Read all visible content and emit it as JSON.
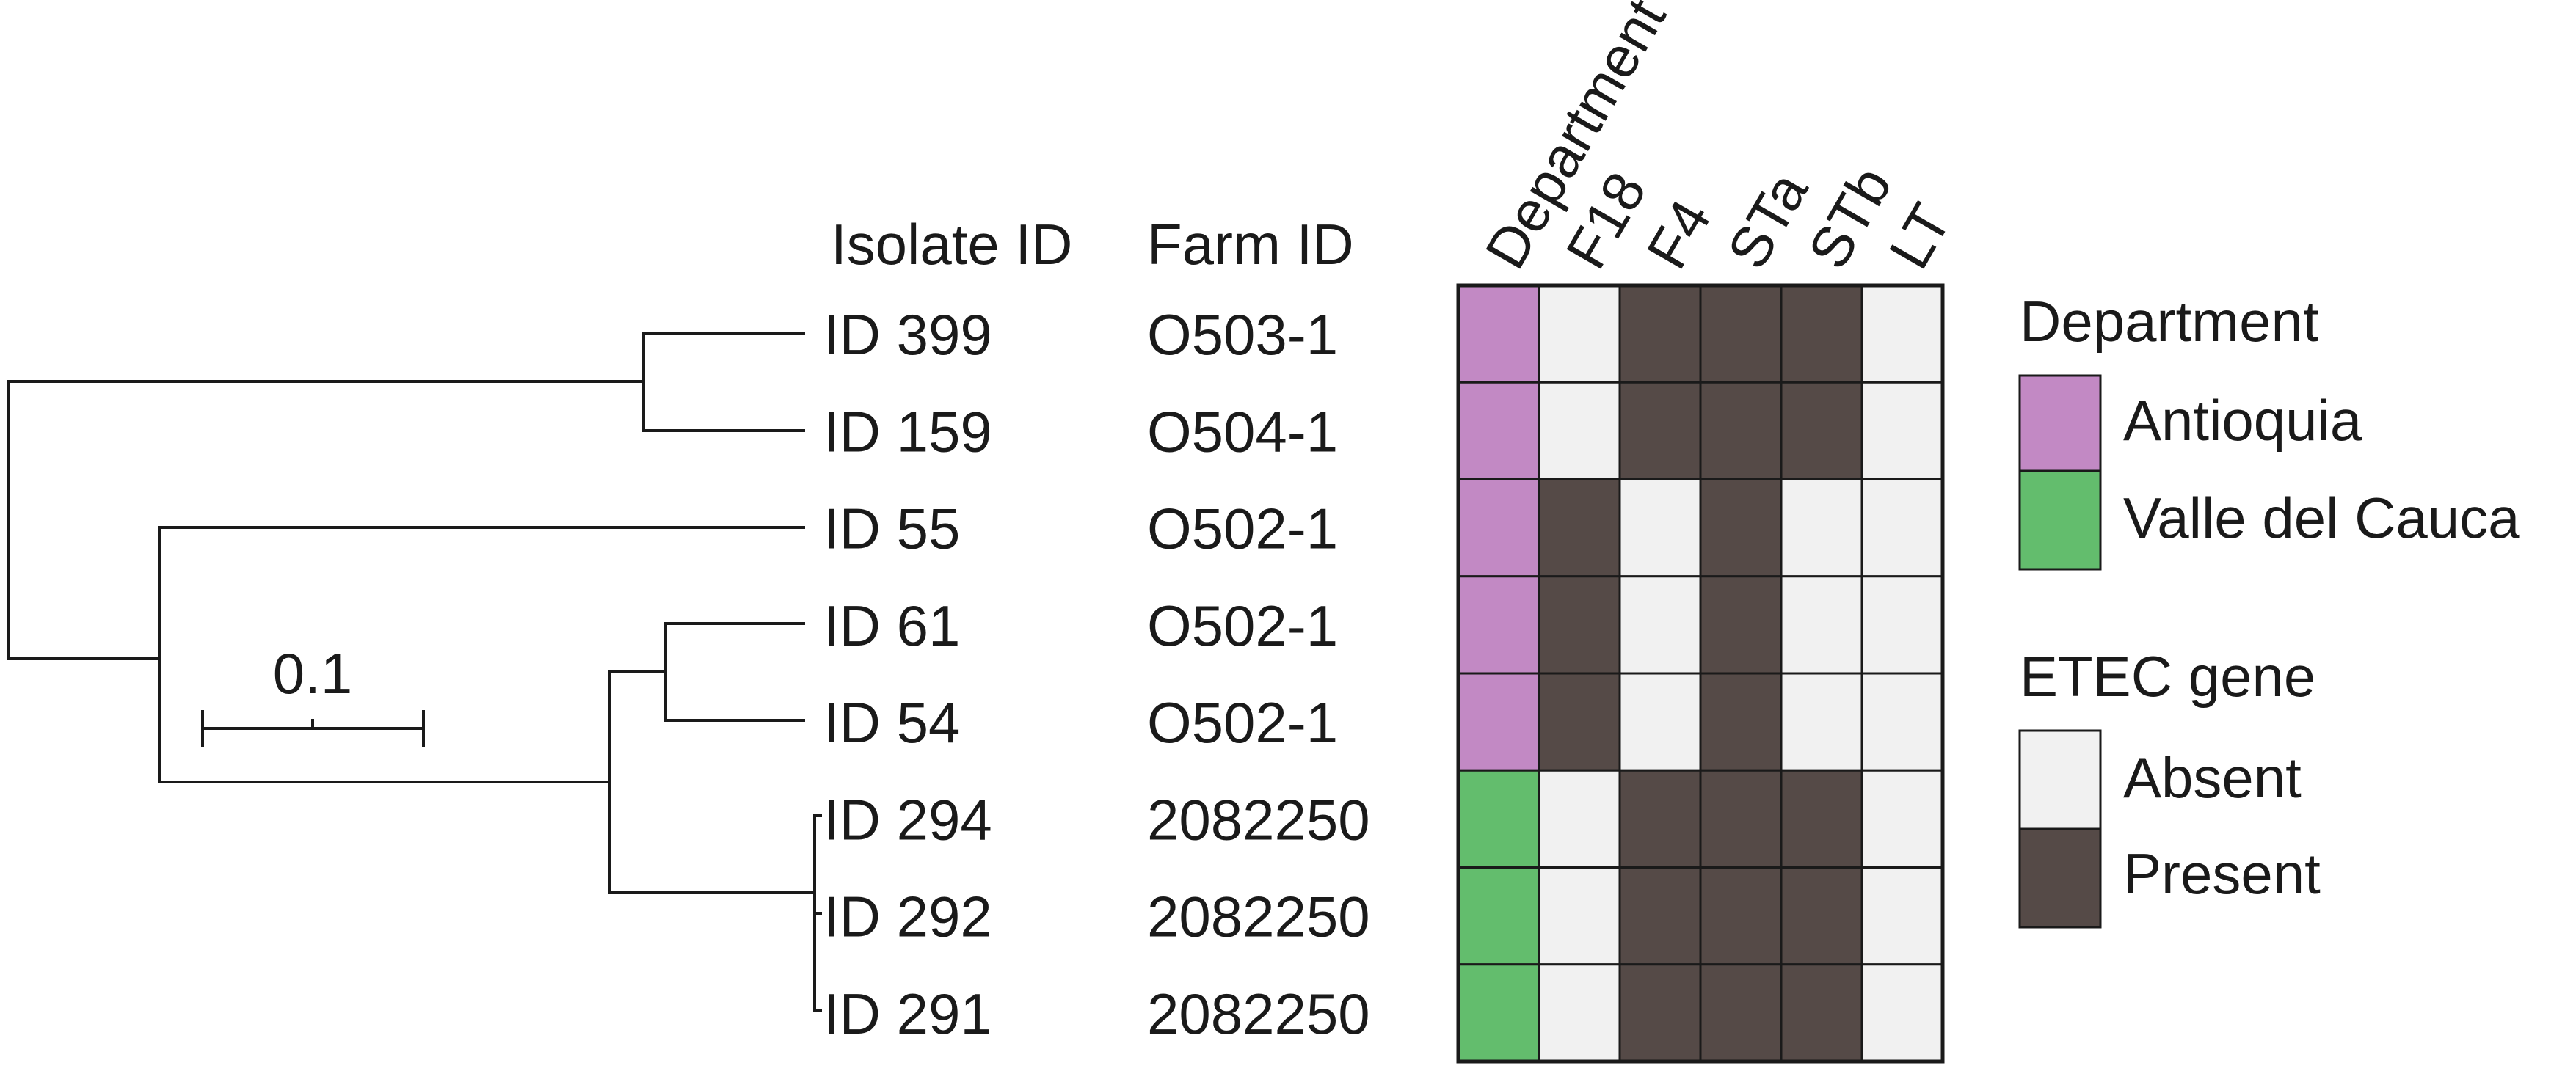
{
  "headers": {
    "isolate": "Isolate ID",
    "farm": "Farm ID",
    "columns": [
      "Department",
      "F18",
      "F4",
      "STa",
      "STb",
      "LT"
    ]
  },
  "rows": [
    {
      "isolate": "ID 399",
      "farm": "O503-1",
      "department": "Antioquia",
      "genes": [
        0,
        1,
        1,
        1,
        0
      ]
    },
    {
      "isolate": "ID 159",
      "farm": "O504-1",
      "department": "Antioquia",
      "genes": [
        0,
        1,
        1,
        1,
        0
      ]
    },
    {
      "isolate": "ID 55",
      "farm": "O502-1",
      "department": "Antioquia",
      "genes": [
        1,
        0,
        1,
        0,
        0
      ]
    },
    {
      "isolate": "ID 61",
      "farm": "O502-1",
      "department": "Antioquia",
      "genes": [
        1,
        0,
        1,
        0,
        0
      ]
    },
    {
      "isolate": "ID 54",
      "farm": "O502-1",
      "department": "Antioquia",
      "genes": [
        1,
        0,
        1,
        0,
        0
      ]
    },
    {
      "isolate": "ID 294",
      "farm": "2082250",
      "department": "Valle del Cauca",
      "genes": [
        0,
        1,
        1,
        1,
        0
      ]
    },
    {
      "isolate": "ID 292",
      "farm": "2082250",
      "department": "Valle del Cauca",
      "genes": [
        0,
        1,
        1,
        1,
        0
      ]
    },
    {
      "isolate": "ID 291",
      "farm": "2082250",
      "department": "Valle del Cauca",
      "genes": [
        0,
        1,
        1,
        1,
        0
      ]
    }
  ],
  "scale_bar": {
    "label": "0.1",
    "value": 0.1
  },
  "legend": {
    "department": {
      "title": "Department",
      "items": [
        {
          "label": "Antioquia",
          "color": "#c289c4"
        },
        {
          "label": "Valle del Cauca",
          "color": "#63bd6d"
        }
      ]
    },
    "gene": {
      "title": "ETEC gene",
      "items": [
        {
          "label": "Absent",
          "color": "#f1f1f1"
        },
        {
          "label": "Present",
          "color": "#554a47"
        }
      ]
    }
  }
}
